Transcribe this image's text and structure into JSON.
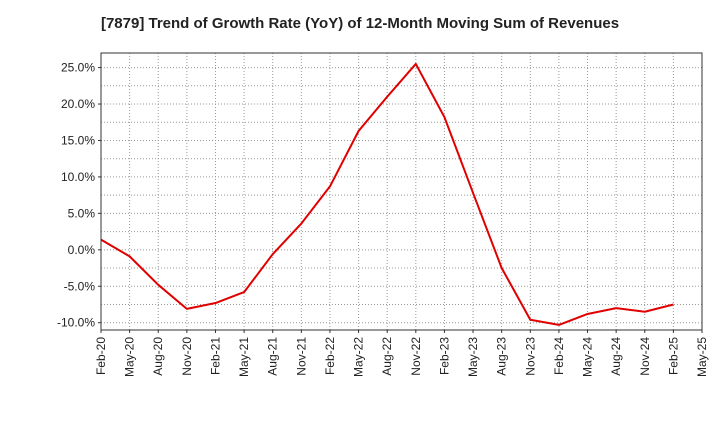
{
  "chart_data": {
    "type": "line",
    "title": "[7879]  Trend of Growth Rate (YoY) of 12-Month Moving Sum of Revenues",
    "xlabel": "",
    "ylabel": "",
    "categories": [
      "Feb-20",
      "May-20",
      "Aug-20",
      "Nov-20",
      "Feb-21",
      "May-21",
      "Aug-21",
      "Nov-21",
      "Feb-22",
      "May-22",
      "Aug-22",
      "Nov-22",
      "Feb-23",
      "May-23",
      "Aug-23",
      "Nov-23",
      "Feb-24",
      "May-24",
      "Aug-24",
      "Nov-24",
      "Feb-25",
      "May-25"
    ],
    "y_tick_labels": [
      "25.0%",
      "20.0%",
      "15.0%",
      "10.0%",
      "5.0%",
      "0.0%",
      "-5.0%",
      "-10.0%"
    ],
    "y_tick_values": [
      25,
      20,
      15,
      10,
      5,
      0,
      -5,
      -10
    ],
    "ylim": [
      -11,
      27
    ],
    "grid": true,
    "series": [
      {
        "color": "#e00000",
        "x": [
          "Feb-20",
          "May-20",
          "Aug-20",
          "Nov-20",
          "Feb-21",
          "May-21",
          "Aug-21",
          "Nov-21",
          "Feb-22",
          "May-22",
          "Aug-22",
          "Nov-22",
          "Feb-23",
          "May-23",
          "Aug-23",
          "Nov-23",
          "Feb-24",
          "May-24",
          "Aug-24",
          "Nov-24",
          "Feb-25"
        ],
        "values": [
          1.4,
          -0.9,
          -4.8,
          -8.1,
          -7.3,
          -5.8,
          -0.6,
          3.6,
          8.7,
          16.3,
          21.0,
          25.5,
          18.2,
          7.8,
          -2.5,
          -9.6,
          -10.3,
          -8.8,
          -8.0,
          -8.5,
          -7.5
        ]
      }
    ]
  }
}
